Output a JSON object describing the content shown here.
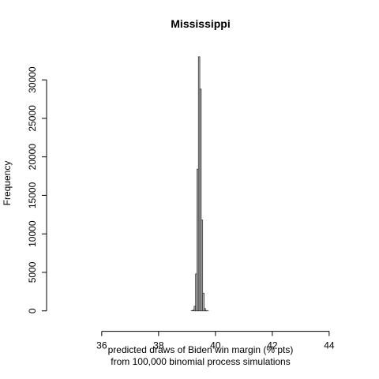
{
  "chart_data": {
    "type": "histogram",
    "title": "Mississippi",
    "xlabel": [
      "predicted draws of Biden win margin (% pts)",
      "from 100,000 binomial process simulations"
    ],
    "ylabel": "Frequency",
    "bins": [
      39.15,
      39.2,
      39.25,
      39.3,
      39.35,
      39.4,
      39.45,
      39.5,
      39.55,
      39.6,
      39.65,
      39.7,
      39.75
    ],
    "values": [
      20,
      100,
      600,
      4800,
      18400,
      33000,
      28800,
      11800,
      2300,
      300,
      50,
      10
    ],
    "color": "#bebebe",
    "edgecolor": "#333333",
    "xlim": [
      34.06,
      44.92
    ],
    "xticks": [
      36,
      38,
      40,
      42,
      44
    ],
    "ylim": [
      -1320,
      34320
    ],
    "yticks": [
      0,
      5000,
      10000,
      15000,
      20000,
      25000,
      30000
    ]
  }
}
